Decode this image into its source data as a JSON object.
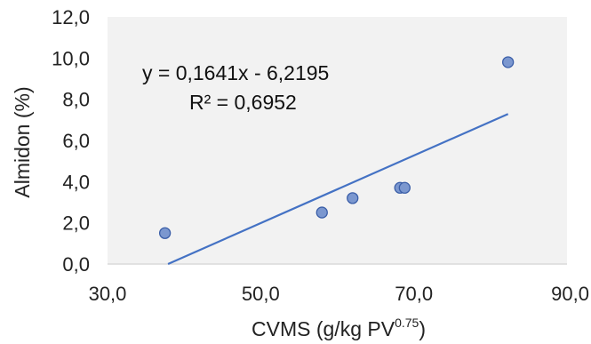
{
  "chart_data": {
    "type": "scatter",
    "title": "",
    "xlabel": "CVMS (g/kg PV",
    "xlabel_superscript": "0.75",
    "xlabel_suffix": ")",
    "ylabel": "Almidon (%)",
    "xlim": [
      30,
      90
    ],
    "ylim": [
      0,
      12
    ],
    "x_ticks": [
      "30,0",
      "50,0",
      "70,0",
      "90,0"
    ],
    "y_ticks": [
      "0,0",
      "2,0",
      "4,0",
      "6,0",
      "8,0",
      "10,0",
      "12,0"
    ],
    "grid": false,
    "series": [
      {
        "points": [
          {
            "x": 37.5,
            "y": 1.5
          },
          {
            "x": 58.0,
            "y": 2.5
          },
          {
            "x": 62.0,
            "y": 3.2
          },
          {
            "x": 68.2,
            "y": 3.7
          },
          {
            "x": 68.8,
            "y": 3.7
          },
          {
            "x": 82.3,
            "y": 9.8
          }
        ],
        "marker_color": "#7b97cf",
        "marker_edge": "#3a5ea8"
      }
    ],
    "trendline": {
      "slope": 0.1641,
      "intercept": -6.2195,
      "x_end": 82.3,
      "color": "#4472c4",
      "equation": "y = 0,1641x - 6,2195",
      "r2": "R² = 0,6952"
    },
    "plot_background": "#f2f2f2"
  }
}
